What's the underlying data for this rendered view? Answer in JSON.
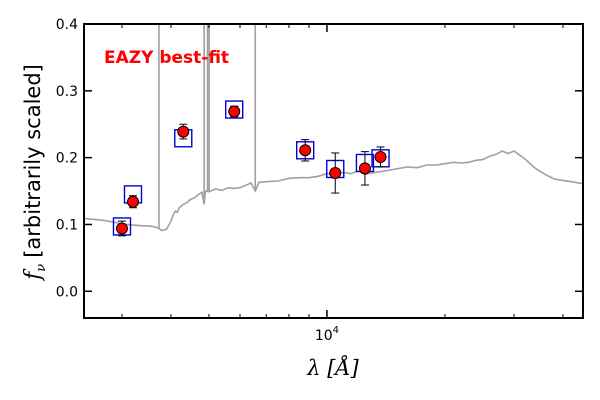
{
  "chart_data": {
    "type": "scatter",
    "title": "",
    "annotation": "EAZY best-fit",
    "annotation_color": "#ff0000",
    "xlabel": "λ [Å]",
    "ylabel_sub": "f",
    "ylabel_sub_index": "ν",
    "ylabel_rest": "[arbitrarily scaled]",
    "x_scale": "log",
    "xlim": [
      2400,
      45000
    ],
    "ylim": [
      -0.04,
      0.4
    ],
    "x_tick_label_base": "10",
    "x_tick_label_exp": "4",
    "x_major_ticks": [
      10000
    ],
    "x_minor_ticks": [
      3000,
      4000,
      5000,
      6000,
      7000,
      8000,
      9000,
      20000,
      30000,
      40000
    ],
    "y_ticks": [
      0.0,
      0.1,
      0.2,
      0.3,
      0.4
    ],
    "y_tick_labels": [
      "0.0",
      "0.1",
      "0.2",
      "0.3",
      "0.4"
    ],
    "grid": false,
    "legend": "none",
    "colors": {
      "template": "#a0a0a0",
      "model_box": "#0000dd",
      "observed_fill": "#ff0000",
      "observed_edge": "#000000"
    },
    "series": [
      {
        "kind": "line",
        "x": [
          2400,
          2700,
          3000,
          3200,
          3400,
          3500,
          3600,
          3700,
          3800,
          3900,
          4000,
          4050,
          4100,
          4150,
          4200,
          4300,
          4400,
          4500,
          4600,
          4700,
          4800,
          4861,
          4900,
          5000,
          5200,
          5400,
          5600,
          5800,
          6000,
          6400,
          6563,
          6700,
          7000,
          7500,
          8000,
          8500,
          9000,
          9500,
          10000,
          10500,
          11000,
          11500,
          12000,
          12500,
          13000,
          14000,
          15000,
          16000,
          17000,
          18000,
          19000,
          20000,
          21000,
          22000,
          23000,
          24000,
          25000,
          26000,
          27000,
          28000,
          29000,
          30000,
          32000,
          34000,
          36000,
          38000,
          40000,
          42000,
          45000
        ],
        "y": [
          0.109,
          0.106,
          0.101,
          0.099,
          0.098,
          0.098,
          0.097,
          0.095,
          0.091,
          0.093,
          0.105,
          0.114,
          0.12,
          0.118,
          0.125,
          0.13,
          0.133,
          0.138,
          0.14,
          0.145,
          0.148,
          0.13,
          0.15,
          0.149,
          0.153,
          0.151,
          0.155,
          0.154,
          0.155,
          0.162,
          0.15,
          0.163,
          0.164,
          0.165,
          0.169,
          0.17,
          0.17,
          0.172,
          0.176,
          0.174,
          0.178,
          0.176,
          0.18,
          0.175,
          0.177,
          0.18,
          0.183,
          0.186,
          0.185,
          0.189,
          0.189,
          0.191,
          0.193,
          0.192,
          0.193,
          0.196,
          0.197,
          0.202,
          0.205,
          0.21,
          0.206,
          0.21,
          0.198,
          0.184,
          0.175,
          0.168,
          0.166,
          0.164,
          0.161
        ]
      },
      {
        "kind": "emission-lines",
        "x": [
          3727,
          4861,
          4959,
          5007,
          6563
        ],
        "y_top": [
          0.4,
          0.4,
          0.4,
          0.4,
          0.4
        ]
      },
      {
        "kind": "model-boxes",
        "x": [
          3000,
          3200,
          4300,
          5800,
          8800,
          10500,
          12500,
          13700
        ],
        "y": [
          0.097,
          0.145,
          0.229,
          0.272,
          0.211,
          0.183,
          0.192,
          0.199
        ]
      },
      {
        "kind": "observed",
        "x": [
          3000,
          3200,
          4300,
          5800,
          8800,
          10500,
          12500,
          13700
        ],
        "y": [
          0.094,
          0.134,
          0.239,
          0.269,
          0.211,
          0.177,
          0.184,
          0.201
        ],
        "err": [
          0.011,
          0.009,
          0.011,
          0.008,
          0.016,
          0.03,
          0.025,
          0.015
        ]
      }
    ]
  }
}
